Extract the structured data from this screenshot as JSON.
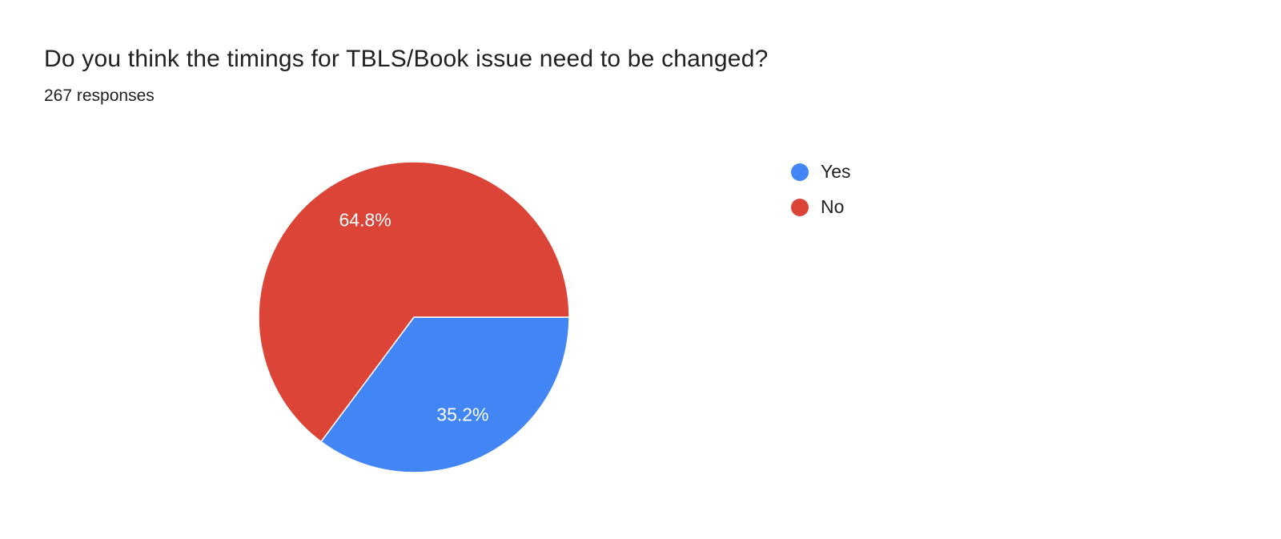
{
  "header": {
    "title": "Do you think the timings for TBLS/Book issue need to be changed?",
    "responses": "267 responses"
  },
  "chart_data": {
    "type": "pie",
    "title": "Do you think the timings for TBLS/Book issue need to be changed?",
    "total_responses": 267,
    "slices": [
      {
        "label": "Yes",
        "value": 35.2,
        "display": "35.2%",
        "color": "#4285f4"
      },
      {
        "label": "No",
        "value": 64.8,
        "display": "64.8%",
        "color": "#db4437"
      }
    ],
    "start_angle_deg": 90,
    "direction": "clockwise",
    "legend_position": "right",
    "slice_label_color": "#ffffff",
    "slice_border_color": "#ffffff"
  }
}
